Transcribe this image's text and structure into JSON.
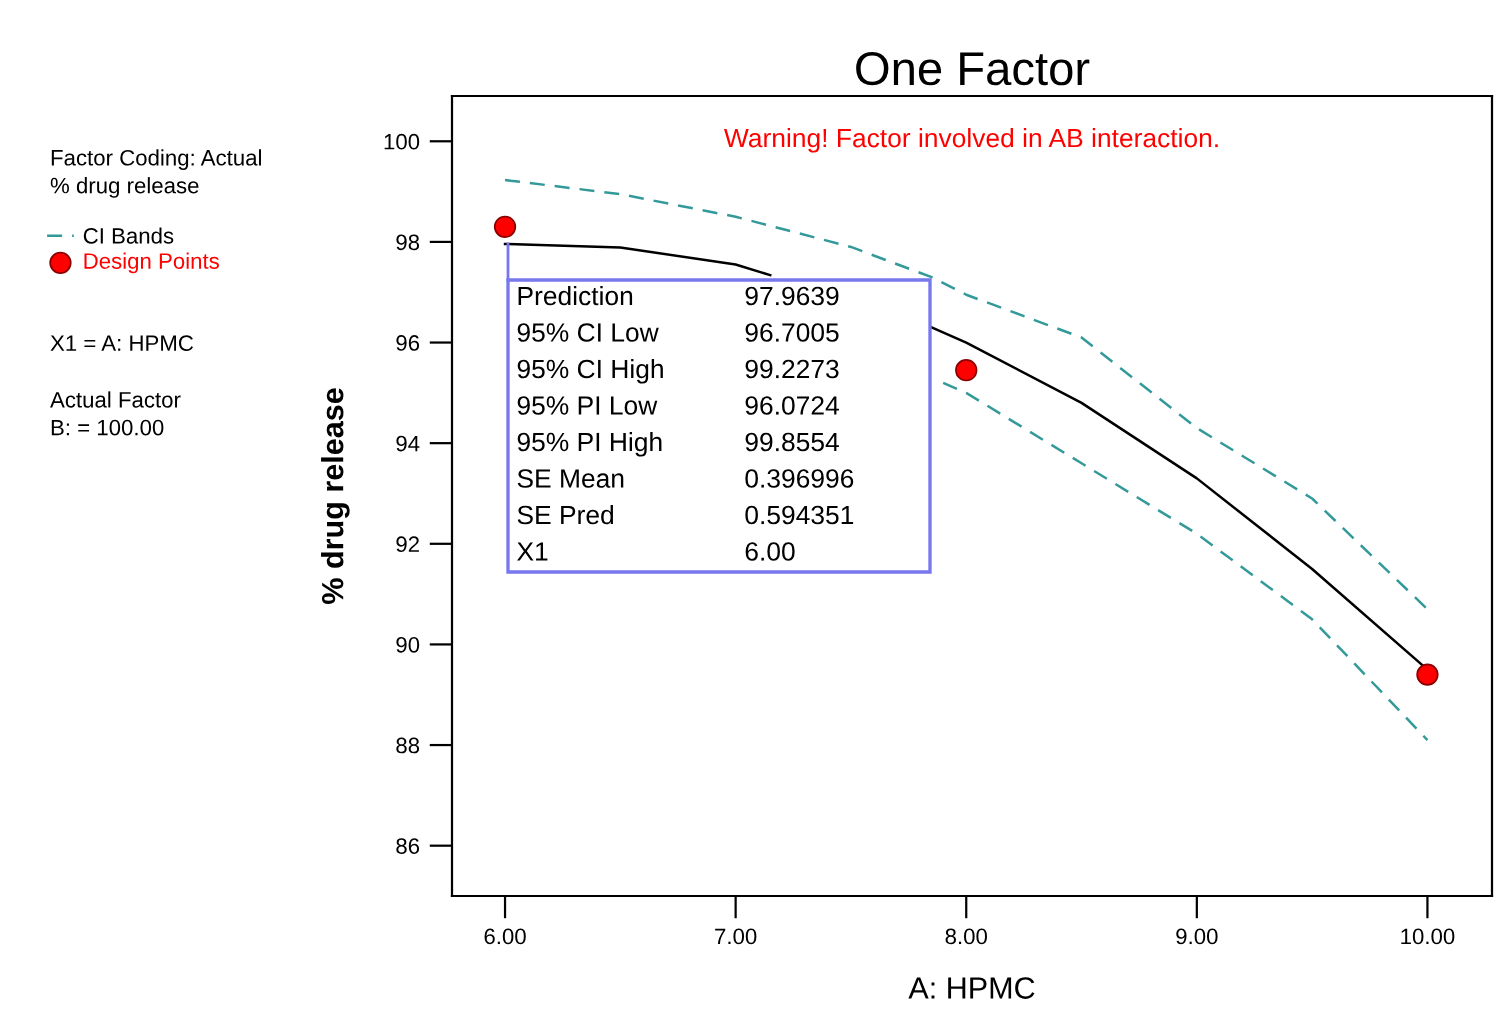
{
  "chart_data": {
    "type": "line",
    "title": "One Factor",
    "xlabel": "A: HPMC",
    "ylabel": "% drug release",
    "xlim": [
      5.77,
      10.28
    ],
    "xticks": [
      {
        "value": 6,
        "label": "6.00"
      },
      {
        "value": 7,
        "label": "7.00"
      },
      {
        "value": 8,
        "label": "8.00"
      },
      {
        "value": 9,
        "label": "9.00"
      },
      {
        "value": 10,
        "label": "10.00"
      }
    ],
    "ylim": [
      85.0,
      100.9
    ],
    "yticks": [
      86,
      88,
      90,
      92,
      94,
      96,
      98,
      100
    ],
    "grid": false,
    "legend": "left",
    "marker": "none",
    "series": [
      {
        "color": "#000000",
        "line_style": "solid",
        "x": [
          6,
          6.5,
          7,
          7.15,
          7.5,
          7.85,
          8,
          8.5,
          9,
          9.5,
          10
        ],
        "values": [
          97.96,
          97.89,
          97.55,
          97.34,
          null,
          96.3,
          96.0,
          94.8,
          93.3,
          91.5,
          89.5
        ]
      },
      {
        "name": "CI Bands",
        "color": "#339999",
        "line_style": "dashed",
        "x": [
          6,
          6.5,
          7,
          7.5,
          7.85,
          8,
          8.5,
          9,
          9.5,
          10
        ],
        "values": [
          99.23,
          98.95,
          98.5,
          97.9,
          97.3,
          96.95,
          96.1,
          94.3,
          92.9,
          90.7
        ]
      },
      {
        "color": "#339999",
        "line_style": "dashed",
        "x": [
          7.9,
          8,
          8.5,
          9,
          9.5,
          10
        ],
        "values": [
          95.2,
          95.0,
          93.6,
          92.2,
          90.5,
          88.1
        ]
      },
      {
        "name": "Design Points",
        "type": "scatter",
        "marker": "circle",
        "color": "#ff0000",
        "x": [
          6,
          8,
          10
        ],
        "values": [
          98.3,
          95.45,
          89.4
        ]
      }
    ],
    "annotations": [
      "Factor Coding: Actual",
      "% drug release",
      "X1 = A: HPMC",
      "Actual Factor",
      "B: = 100.00",
      "Warning! Factor involved in AB interaction.",
      "Prediction",
      "97.9639",
      "95% CI Low",
      "96.7005",
      "95% CI High",
      "99.2273",
      "95% PI Low",
      "96.0724",
      "95% PI High",
      "99.8554",
      "SE Mean",
      "0.396996",
      "SE Pred",
      "0.594351",
      "X1",
      "6.00"
    ]
  }
}
